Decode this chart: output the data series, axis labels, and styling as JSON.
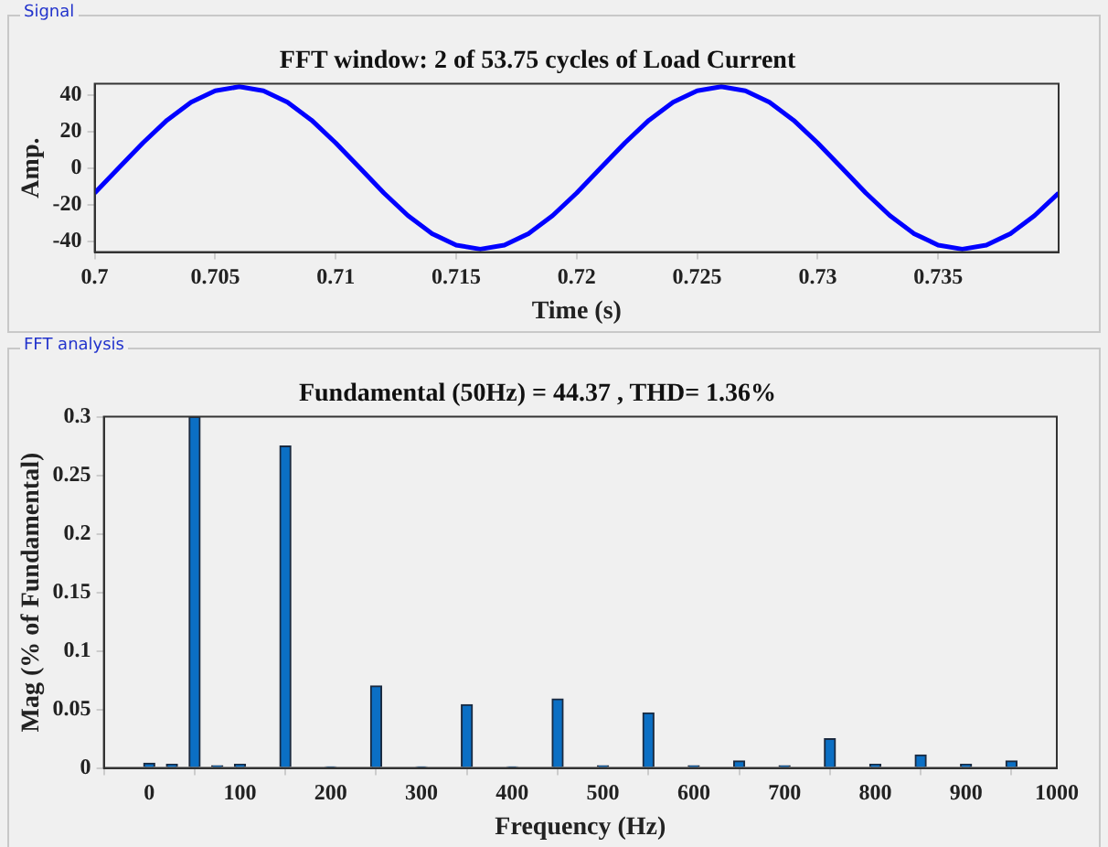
{
  "chart_data": [
    {
      "type": "line",
      "title": "FFT window: 2 of 53.75 cycles of Load Current",
      "xlabel": "Time (s)",
      "ylabel": "Amp.",
      "annotations": [
        "Signal"
      ],
      "x": [
        0.7,
        0.701,
        0.702,
        0.703,
        0.704,
        0.705,
        0.706,
        0.707,
        0.708,
        0.709,
        0.71,
        0.711,
        0.712,
        0.713,
        0.714,
        0.715,
        0.716,
        0.717,
        0.718,
        0.719,
        0.72,
        0.721,
        0.722,
        0.723,
        0.724,
        0.725,
        0.726,
        0.727,
        0.728,
        0.729,
        0.73,
        0.731,
        0.732,
        0.733,
        0.734,
        0.735,
        0.736,
        0.737,
        0.738,
        0.739,
        0.74
      ],
      "series": [
        {
          "color": "#0000ff",
          "values": [
            -13.7,
            0,
            13.7,
            26.1,
            35.9,
            42.2,
            44.4,
            42.2,
            35.9,
            26.1,
            13.7,
            0,
            -13.7,
            -26.1,
            -35.9,
            -42.2,
            -44.4,
            -42.2,
            -35.9,
            -26.1,
            -13.7,
            0,
            13.7,
            26.1,
            35.9,
            42.2,
            44.4,
            42.2,
            35.9,
            26.1,
            13.7,
            0,
            -13.7,
            -26.1,
            -35.9,
            -42.2,
            -44.4,
            -42.2,
            -35.9,
            -26.1,
            -13.7
          ]
        }
      ],
      "xlim": [
        0.7,
        0.74
      ],
      "xticks": [
        0.7,
        0.705,
        0.71,
        0.715,
        0.72,
        0.725,
        0.73,
        0.735
      ],
      "ylim": [
        -46,
        46
      ],
      "yticks": [
        -40,
        -20,
        0,
        20,
        40
      ],
      "grid": false,
      "line_style": "solid",
      "marker": "none"
    },
    {
      "type": "bar",
      "title": "Fundamental (50Hz) = 44.37 , THD= 1.36%",
      "xlabel": "Frequency (Hz)",
      "ylabel": "Mag (% of Fundamental)",
      "annotations": [
        "FFT analysis"
      ],
      "x": [
        0,
        25,
        50,
        75,
        100,
        150,
        200,
        250,
        300,
        350,
        400,
        450,
        500,
        550,
        600,
        650,
        700,
        750,
        800,
        850,
        900,
        950
      ],
      "series": [
        {
          "color": "#0b6fc4",
          "values": [
            0.004,
            0.003,
            0.3,
            0.002,
            0.003,
            0.275,
            0.001,
            0.07,
            0.001,
            0.054,
            0.001,
            0.059,
            0.002,
            0.047,
            0.002,
            0.006,
            0.002,
            0.025,
            0.003,
            0.011,
            0.003,
            0.006
          ]
        }
      ],
      "xlim": [
        -50,
        1000
      ],
      "xticks": [
        0,
        100,
        200,
        300,
        400,
        500,
        600,
        700,
        800,
        900,
        1000
      ],
      "ylim": [
        0,
        0.3
      ],
      "yticks": [
        0,
        0.05,
        0.1,
        0.15,
        0.2,
        0.25,
        0.3
      ],
      "grid": false
    }
  ]
}
